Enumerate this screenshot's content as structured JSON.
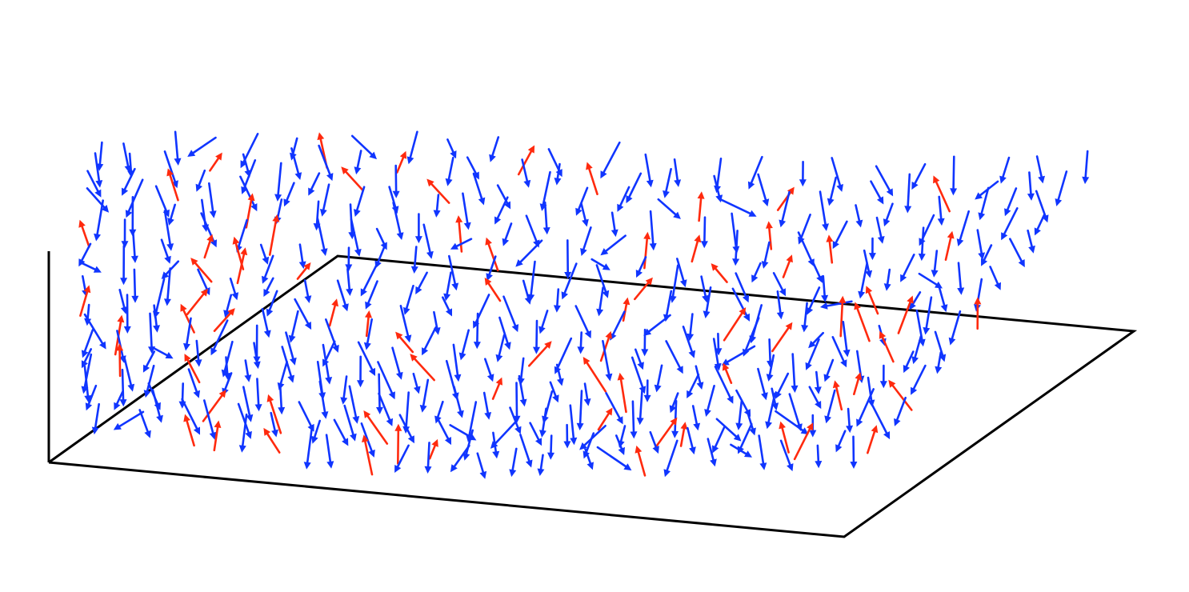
{
  "figure": {
    "kind": "3D spin/vector field on a square lattice (perspective view)",
    "colors": {
      "background": "#ffffff",
      "frame": "#000000",
      "down_spin": "#1035ff",
      "up_spin": "#ff2a0e"
    },
    "legend": "none",
    "axes_labels": "none",
    "lattice": {
      "cols": 26,
      "rows": 18,
      "up_spin_fraction": 0.17
    },
    "arrow_icon": "arrow-icon"
  }
}
